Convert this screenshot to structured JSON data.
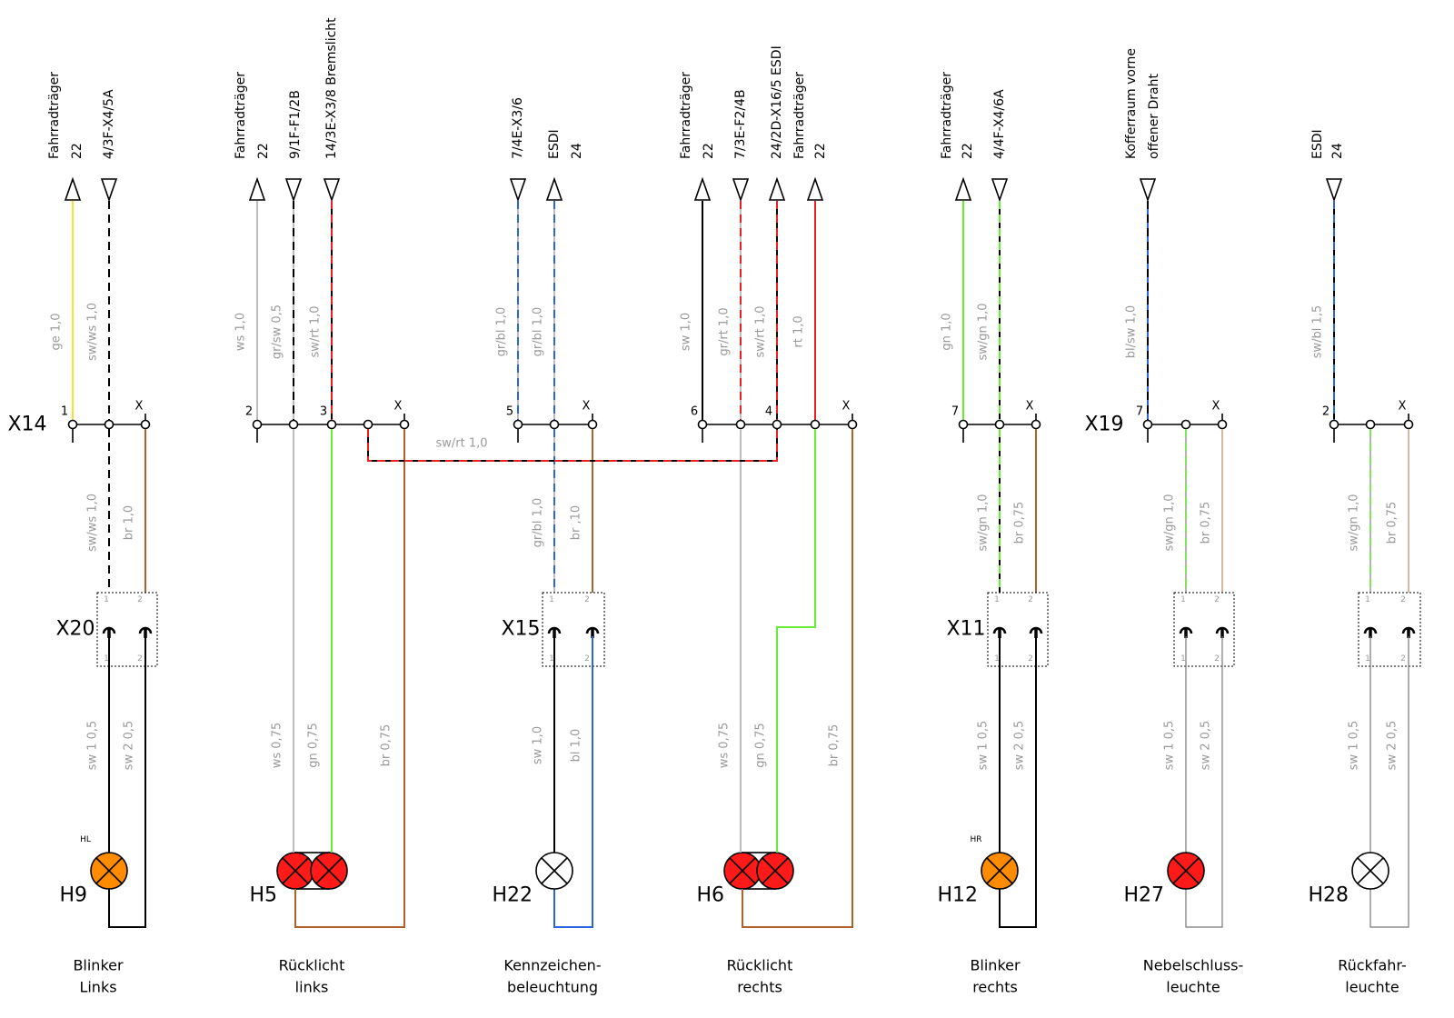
{
  "groups": [
    {
      "top_labels": [
        [
          "Fahrradträger",
          "22"
        ],
        [
          "4/3F-X4/5A"
        ]
      ],
      "upper_wire_labels": [
        "ge 1,0",
        "sw/ws 1,0"
      ],
      "connector": "X14",
      "pins": [
        "1",
        "X"
      ],
      "middle_wire_labels": [
        "sw/ws 1,0",
        "br 1,0"
      ],
      "plug": "X20",
      "plug_pins": [
        "1",
        "2",
        "1",
        "2"
      ],
      "lower_wire_labels": [
        "sw 1 0,5",
        "sw 2 0,5"
      ],
      "lamp_tag": "HL",
      "lamp": "H9",
      "caption": [
        "Blinker",
        "Links"
      ]
    },
    {
      "top_labels": [
        [
          "Fahrradträger",
          "22"
        ],
        [
          "9/1F-F1/2B"
        ],
        [
          "14/3E-X3/8  Bremslicht"
        ]
      ],
      "upper_wire_labels": [
        "ws 1,0",
        "gr/sw 0,5",
        "sw/rt 1,0"
      ],
      "pins": [
        "2",
        "3",
        "X"
      ],
      "lower_wire_labels": [
        "ws 0,75",
        "gn 0,75",
        "br 0,75"
      ],
      "lamp": "H5",
      "caption": [
        "Rücklicht",
        "links"
      ]
    },
    {
      "top_labels": [
        [
          "7/4E-X3/6"
        ],
        [
          "ESDI",
          "24"
        ]
      ],
      "upper_wire_labels": [
        "gr/bl 1,0",
        "gr/bl 1,0"
      ],
      "pins": [
        "5",
        "X"
      ],
      "middle_wire_labels": [
        "gr/bl 1,0",
        "br ,10"
      ],
      "plug": "X15",
      "plug_pins": [
        "1",
        "2",
        "1",
        "2"
      ],
      "lower_wire_labels": [
        "sw 1,0",
        "bl 1,0"
      ],
      "lamp": "H22",
      "caption": [
        "Kennzeichen-",
        "beleuchtung"
      ]
    },
    {
      "top_labels": [
        [
          "Fahrradträger",
          "22"
        ],
        [
          "7/3E-F2/4B"
        ],
        [
          "24/2D-X16/5  ESDI"
        ],
        [
          "Fahrradträger",
          "22"
        ]
      ],
      "upper_wire_labels": [
        "sw 1,0",
        "gr/rt 1,0",
        "sw/rt 1,0",
        "rt 1,0"
      ],
      "pins": [
        "6",
        "4",
        "X"
      ],
      "lower_wire_labels": [
        "ws 0,75",
        "gn 0,75",
        "br 0,75"
      ],
      "lamp": "H6",
      "caption": [
        "Rücklicht",
        "rechts"
      ]
    },
    {
      "top_labels": [
        [
          "Fahrradträger",
          "22"
        ],
        [
          "4/4F-X4/6A"
        ]
      ],
      "upper_wire_labels": [
        "gn 1,0",
        "sw/gn 1,0"
      ],
      "pins": [
        "7",
        "X"
      ],
      "middle_wire_labels": [
        "sw/gn 1,0",
        "br 0,75"
      ],
      "plug": "X11",
      "plug_pins": [
        "1",
        "2",
        "1",
        "2"
      ],
      "lower_wire_labels": [
        "sw 1 0,5",
        "sw 2 0,5"
      ],
      "lamp_tag": "HR",
      "lamp": "H12",
      "caption": [
        "Blinker",
        "rechts"
      ]
    },
    {
      "top_labels": [
        [
          "Kofferraum vorne",
          "offener Draht"
        ]
      ],
      "upper_wire_labels": [
        "bl/sw 1,0"
      ],
      "connector": "X19",
      "pins": [
        "7",
        "X"
      ],
      "middle_wire_labels": [
        "sw/gn 1,0",
        "br 0,75"
      ],
      "plug_pins": [
        "1",
        "2",
        "1",
        "2"
      ],
      "lower_wire_labels": [
        "sw 1 0,5",
        "sw 2 0,5"
      ],
      "lamp": "H27",
      "caption": [
        "Nebelschluss-",
        "leuchte"
      ]
    },
    {
      "top_labels": [
        [
          "ESDI",
          "24"
        ]
      ],
      "upper_wire_labels": [
        "sw/bl 1,5"
      ],
      "pins": [
        "2",
        "X"
      ],
      "middle_wire_labels": [
        "sw/gn 1,0",
        "br 0,75"
      ],
      "plug_pins": [
        "1",
        "2",
        "1",
        "2"
      ],
      "lower_wire_labels": [
        "sw 1 0,5",
        "sw 2 0,5"
      ],
      "lamp": "H28",
      "caption": [
        "Rückfahr-",
        "leuchte"
      ]
    }
  ],
  "bridge_label": "sw/rt 1,0"
}
